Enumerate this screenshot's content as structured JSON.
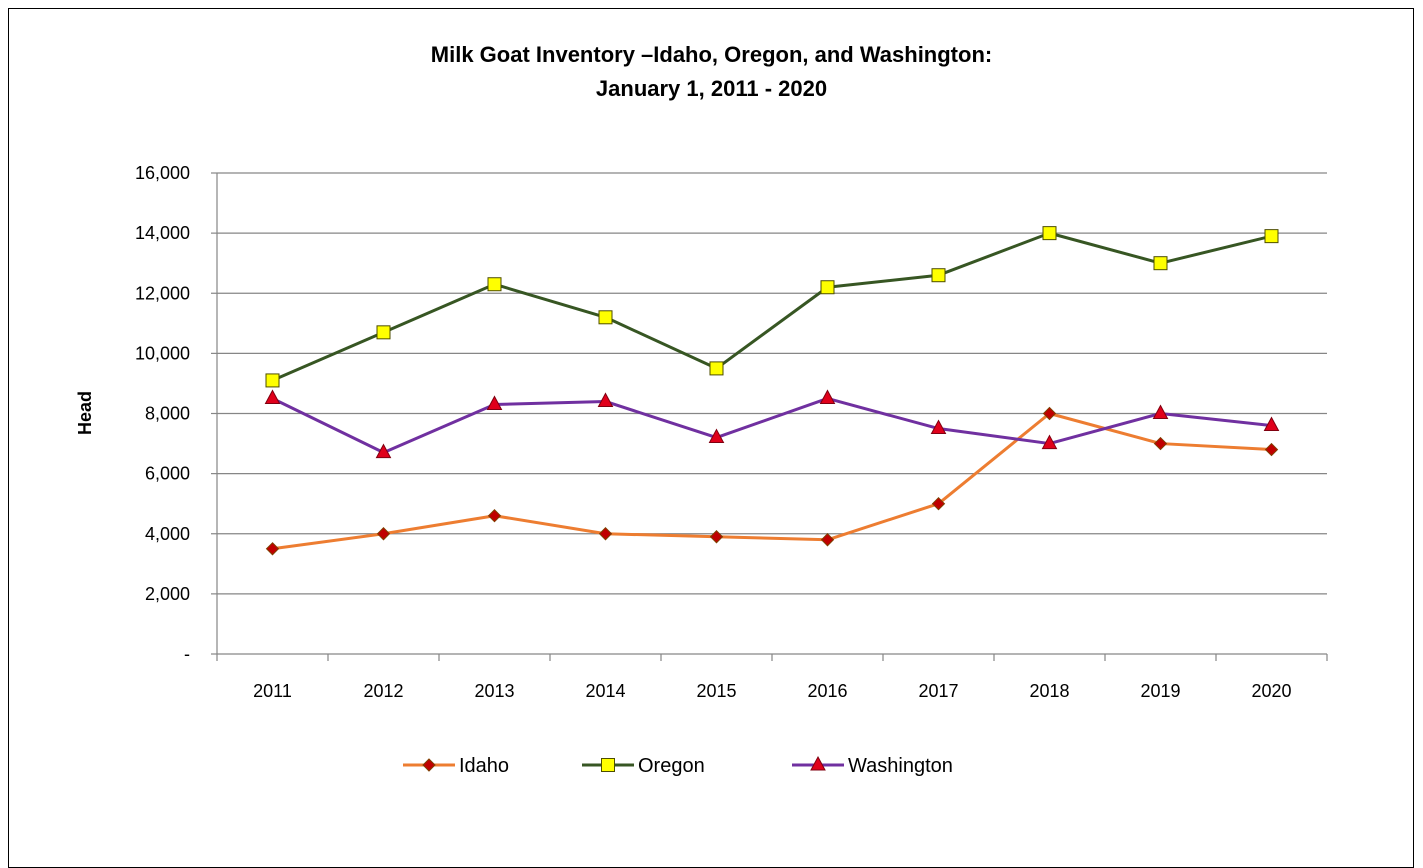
{
  "chart_data": {
    "type": "line",
    "title": "Milk Goat Inventory –Idaho, Oregon, and Washington:",
    "subtitle": "January 1, 2011 - 2020",
    "xlabel": "",
    "ylabel": "Head",
    "x": [
      "2011",
      "2012",
      "2013",
      "2014",
      "2015",
      "2016",
      "2017",
      "2018",
      "2019",
      "2020"
    ],
    "ylim": [
      0,
      16000
    ],
    "yticks": [
      0,
      2000,
      4000,
      6000,
      8000,
      10000,
      12000,
      14000,
      16000
    ],
    "ytick_labels": [
      "-",
      "2,000",
      "4,000",
      "6,000",
      "8,000",
      "10,000",
      "12,000",
      "14,000",
      "16,000"
    ],
    "grid": true,
    "legend_position": "bottom",
    "series": [
      {
        "name": "Idaho",
        "values": [
          3500,
          4000,
          4600,
          4000,
          3900,
          3800,
          5000,
          8000,
          7000,
          6800
        ],
        "line_color": "#ED7D31",
        "marker": "diamond",
        "marker_fill": "#C00000",
        "marker_stroke": "#7F3F00"
      },
      {
        "name": "Oregon",
        "values": [
          9100,
          10700,
          12300,
          11200,
          9500,
          12200,
          12600,
          14000,
          13000,
          13900
        ],
        "line_color": "#375623",
        "marker": "square",
        "marker_fill": "#FFFF00",
        "marker_stroke": "#4D4D00"
      },
      {
        "name": "Washington",
        "values": [
          8500,
          6700,
          8300,
          8400,
          7200,
          8500,
          7500,
          7000,
          8000,
          7600
        ],
        "line_color": "#7030A0",
        "marker": "triangle",
        "marker_fill": "#E0001B",
        "marker_stroke": "#7F0010"
      }
    ]
  }
}
